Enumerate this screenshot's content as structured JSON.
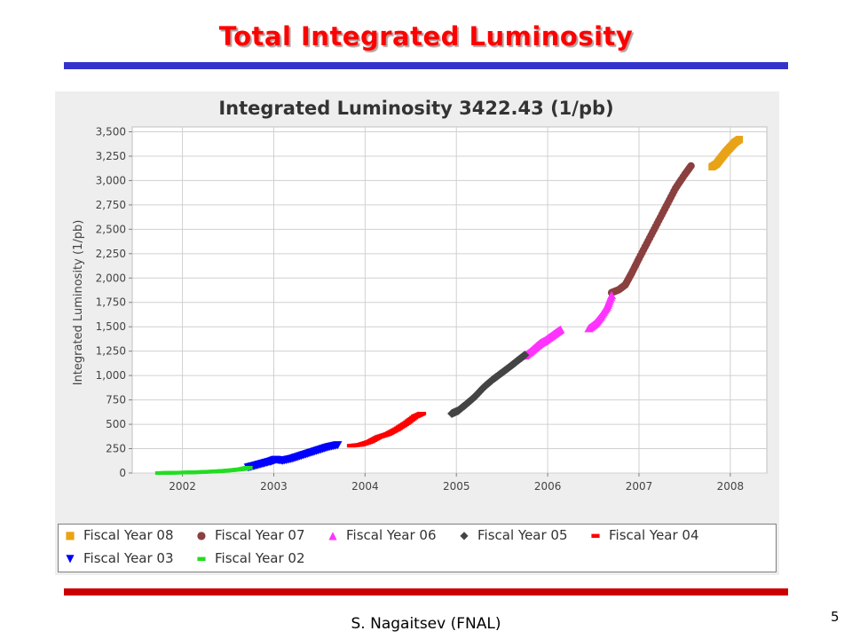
{
  "slide": {
    "title": "Total Integrated Luminosity",
    "author": "S. Nagaitsev (FNAL)",
    "page_number": "5"
  },
  "chart_data": {
    "type": "scatter",
    "title": "Integrated Luminosity 3422.43 (1/pb)",
    "xlabel": "",
    "ylabel": "Integrated Luminosity (1/pb)",
    "xlim": [
      2001.45,
      2008.4
    ],
    "ylim": [
      0,
      3550
    ],
    "x_ticks": [
      2002,
      2003,
      2004,
      2005,
      2006,
      2007,
      2008
    ],
    "x_tick_labels": [
      "2002",
      "2003",
      "2004",
      "2005",
      "2006",
      "2007",
      "2008"
    ],
    "y_ticks": [
      0,
      250,
      500,
      750,
      1000,
      1250,
      1500,
      1750,
      2000,
      2250,
      2500,
      2750,
      3000,
      3250,
      3500
    ],
    "y_tick_labels": [
      "0",
      "250",
      "500",
      "750",
      "1,000",
      "1,250",
      "1,500",
      "1,750",
      "2,000",
      "2,250",
      "2,500",
      "2,750",
      "3,000",
      "3,250",
      "3,500"
    ],
    "grid": true,
    "legend_position": "bottom",
    "series": [
      {
        "name": "Fiscal Year 08",
        "color": "#e8a317",
        "marker": "square",
        "points": [
          [
            2007.8,
            3140
          ],
          [
            2007.85,
            3170
          ],
          [
            2007.9,
            3230
          ],
          [
            2007.95,
            3290
          ],
          [
            2008.0,
            3340
          ],
          [
            2008.05,
            3390
          ],
          [
            2008.1,
            3422
          ]
        ]
      },
      {
        "name": "Fiscal Year 07",
        "color": "#8b4040",
        "marker": "circle",
        "points": [
          [
            2006.7,
            1850
          ],
          [
            2006.78,
            1880
          ],
          [
            2006.85,
            1930
          ],
          [
            2006.92,
            2050
          ],
          [
            2007.0,
            2200
          ],
          [
            2007.1,
            2380
          ],
          [
            2007.2,
            2560
          ],
          [
            2007.3,
            2740
          ],
          [
            2007.4,
            2920
          ],
          [
            2007.5,
            3060
          ],
          [
            2007.57,
            3150
          ]
        ]
      },
      {
        "name": "Fiscal Year 06",
        "color": "#ff33ff",
        "marker": "triangle-up",
        "points": [
          [
            2005.75,
            1200
          ],
          [
            2005.82,
            1250
          ],
          [
            2005.88,
            1300
          ],
          [
            2005.92,
            1330
          ],
          [
            2005.96,
            1350
          ],
          [
            2006.02,
            1390
          ],
          [
            2006.08,
            1430
          ],
          [
            2006.14,
            1470
          ],
          [
            2006.45,
            1480
          ],
          [
            2006.52,
            1530
          ],
          [
            2006.58,
            1600
          ],
          [
            2006.65,
            1700
          ],
          [
            2006.7,
            1820
          ]
        ]
      },
      {
        "name": "Fiscal Year 05",
        "color": "#444444",
        "marker": "diamond",
        "points": [
          [
            2004.95,
            610
          ],
          [
            2005.02,
            640
          ],
          [
            2005.1,
            700
          ],
          [
            2005.2,
            780
          ],
          [
            2005.3,
            880
          ],
          [
            2005.4,
            960
          ],
          [
            2005.5,
            1030
          ],
          [
            2005.6,
            1100
          ],
          [
            2005.68,
            1160
          ],
          [
            2005.75,
            1210
          ]
        ]
      },
      {
        "name": "Fiscal Year 04",
        "color": "#ff0000",
        "marker": "dash",
        "points": [
          [
            2003.85,
            280
          ],
          [
            2003.95,
            290
          ],
          [
            2004.05,
            320
          ],
          [
            2004.15,
            370
          ],
          [
            2004.25,
            400
          ],
          [
            2004.35,
            450
          ],
          [
            2004.45,
            510
          ],
          [
            2004.55,
            580
          ],
          [
            2004.62,
            610
          ]
        ]
      },
      {
        "name": "Fiscal Year 03",
        "color": "#0000ff",
        "marker": "triangle-down",
        "points": [
          [
            2002.72,
            60
          ],
          [
            2002.8,
            80
          ],
          [
            2002.88,
            100
          ],
          [
            2002.96,
            120
          ],
          [
            2003.02,
            140
          ],
          [
            2003.1,
            130
          ],
          [
            2003.2,
            150
          ],
          [
            2003.3,
            180
          ],
          [
            2003.4,
            210
          ],
          [
            2003.5,
            240
          ],
          [
            2003.6,
            270
          ],
          [
            2003.7,
            290
          ]
        ]
      },
      {
        "name": "Fiscal Year 02",
        "color": "#22dd22",
        "marker": "dash",
        "points": [
          [
            2001.75,
            0
          ],
          [
            2001.85,
            2
          ],
          [
            2001.95,
            4
          ],
          [
            2002.05,
            6
          ],
          [
            2002.15,
            8
          ],
          [
            2002.25,
            12
          ],
          [
            2002.35,
            16
          ],
          [
            2002.45,
            22
          ],
          [
            2002.55,
            30
          ],
          [
            2002.65,
            40
          ],
          [
            2002.72,
            55
          ]
        ]
      }
    ],
    "legend_rows": [
      [
        "Fiscal Year 08",
        "Fiscal Year 07",
        "Fiscal Year 06",
        "Fiscal Year 05",
        "Fiscal Year 04"
      ],
      [
        "Fiscal Year 03",
        "Fiscal Year 02"
      ]
    ]
  }
}
